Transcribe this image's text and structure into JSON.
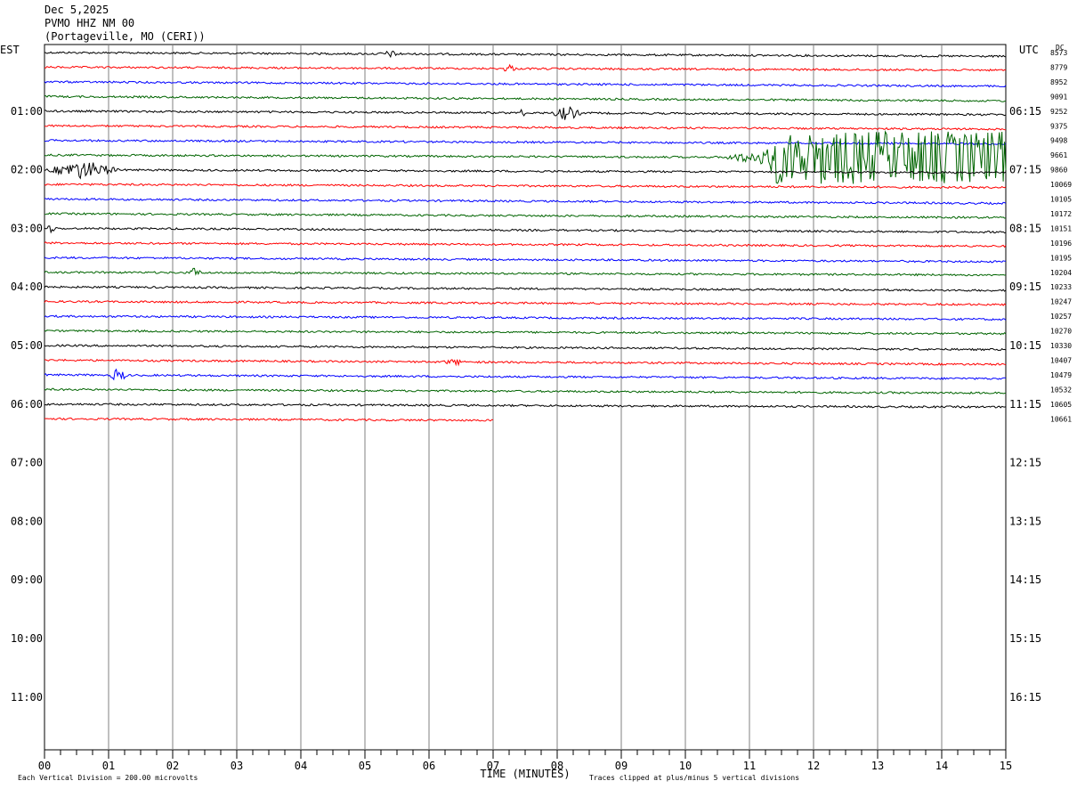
{
  "header": {
    "date": "Dec 5,2025",
    "station": "PVMO HHZ NM 00",
    "location": "(Portageville, MO (CERI))"
  },
  "left_axis_label": "EST",
  "right_axis_label": "UTC",
  "dc_label": "DC",
  "footer": {
    "xlabel": "TIME (MINUTES)",
    "scale_note": "Each Vertical Division =  200.00 microvolts",
    "clip_note": "Traces clipped at plus/minus 5 vertical divisions"
  },
  "colors": {
    "trace_cycle": [
      "#000000",
      "#ff0000",
      "#0000ff",
      "#006400"
    ],
    "grid": "#808080"
  },
  "chart_data": {
    "type": "line",
    "subtype": "helicorder",
    "x_minutes": [
      0,
      15
    ],
    "xticks": [
      "00",
      "01",
      "02",
      "03",
      "04",
      "05",
      "06",
      "07",
      "08",
      "09",
      "10",
      "11",
      "12",
      "13",
      "14",
      "15"
    ],
    "left_labels": [
      "01:00",
      "02:00",
      "03:00",
      "04:00",
      "05:00",
      "06:00",
      "07:00",
      "08:00",
      "09:00",
      "10:00",
      "11:00"
    ],
    "right_labels": [
      "06:15",
      "07:15",
      "08:15",
      "09:15",
      "10:15",
      "11:15",
      "12:15",
      "13:15",
      "14:15",
      "15:15",
      "16:15"
    ],
    "dc_offsets": [
      "8573",
      "8779",
      "8952",
      "9091",
      "9252",
      "9375",
      "9498",
      "9661",
      "9860",
      "10069",
      "10105",
      "10172",
      "10151",
      "10196",
      "10195",
      "10204",
      "10233",
      "10247",
      "10257",
      "10270",
      "10330",
      "10407",
      "10479",
      "10532",
      "10605",
      "10661"
    ],
    "traces_recorded": 26,
    "last_trace_end_minute": 7.0,
    "events": [
      {
        "trace": 0,
        "start_min": 5.2,
        "end_min": 5.6,
        "amp": 3
      },
      {
        "trace": 1,
        "start_min": 7.15,
        "end_min": 7.35,
        "amp": 6
      },
      {
        "trace": 4,
        "start_min": 7.4,
        "end_min": 7.5,
        "amp": 6
      },
      {
        "trace": 4,
        "start_min": 7.9,
        "end_min": 8.4,
        "amp": 8
      },
      {
        "trace": 7,
        "start_min": 10.6,
        "end_min": 15.0,
        "amp": 30,
        "onset_min": 11.3
      },
      {
        "trace": 8,
        "start_min": 0.0,
        "end_min": 1.2,
        "amp": 10
      },
      {
        "trace": 12,
        "start_min": 0.0,
        "end_min": 0.2,
        "amp": 4
      },
      {
        "trace": 15,
        "start_min": 2.25,
        "end_min": 2.45,
        "amp": 6
      },
      {
        "trace": 22,
        "start_min": 1.0,
        "end_min": 1.3,
        "amp": 8
      },
      {
        "trace": 21,
        "start_min": 6.2,
        "end_min": 6.6,
        "amp": 3
      }
    ]
  }
}
